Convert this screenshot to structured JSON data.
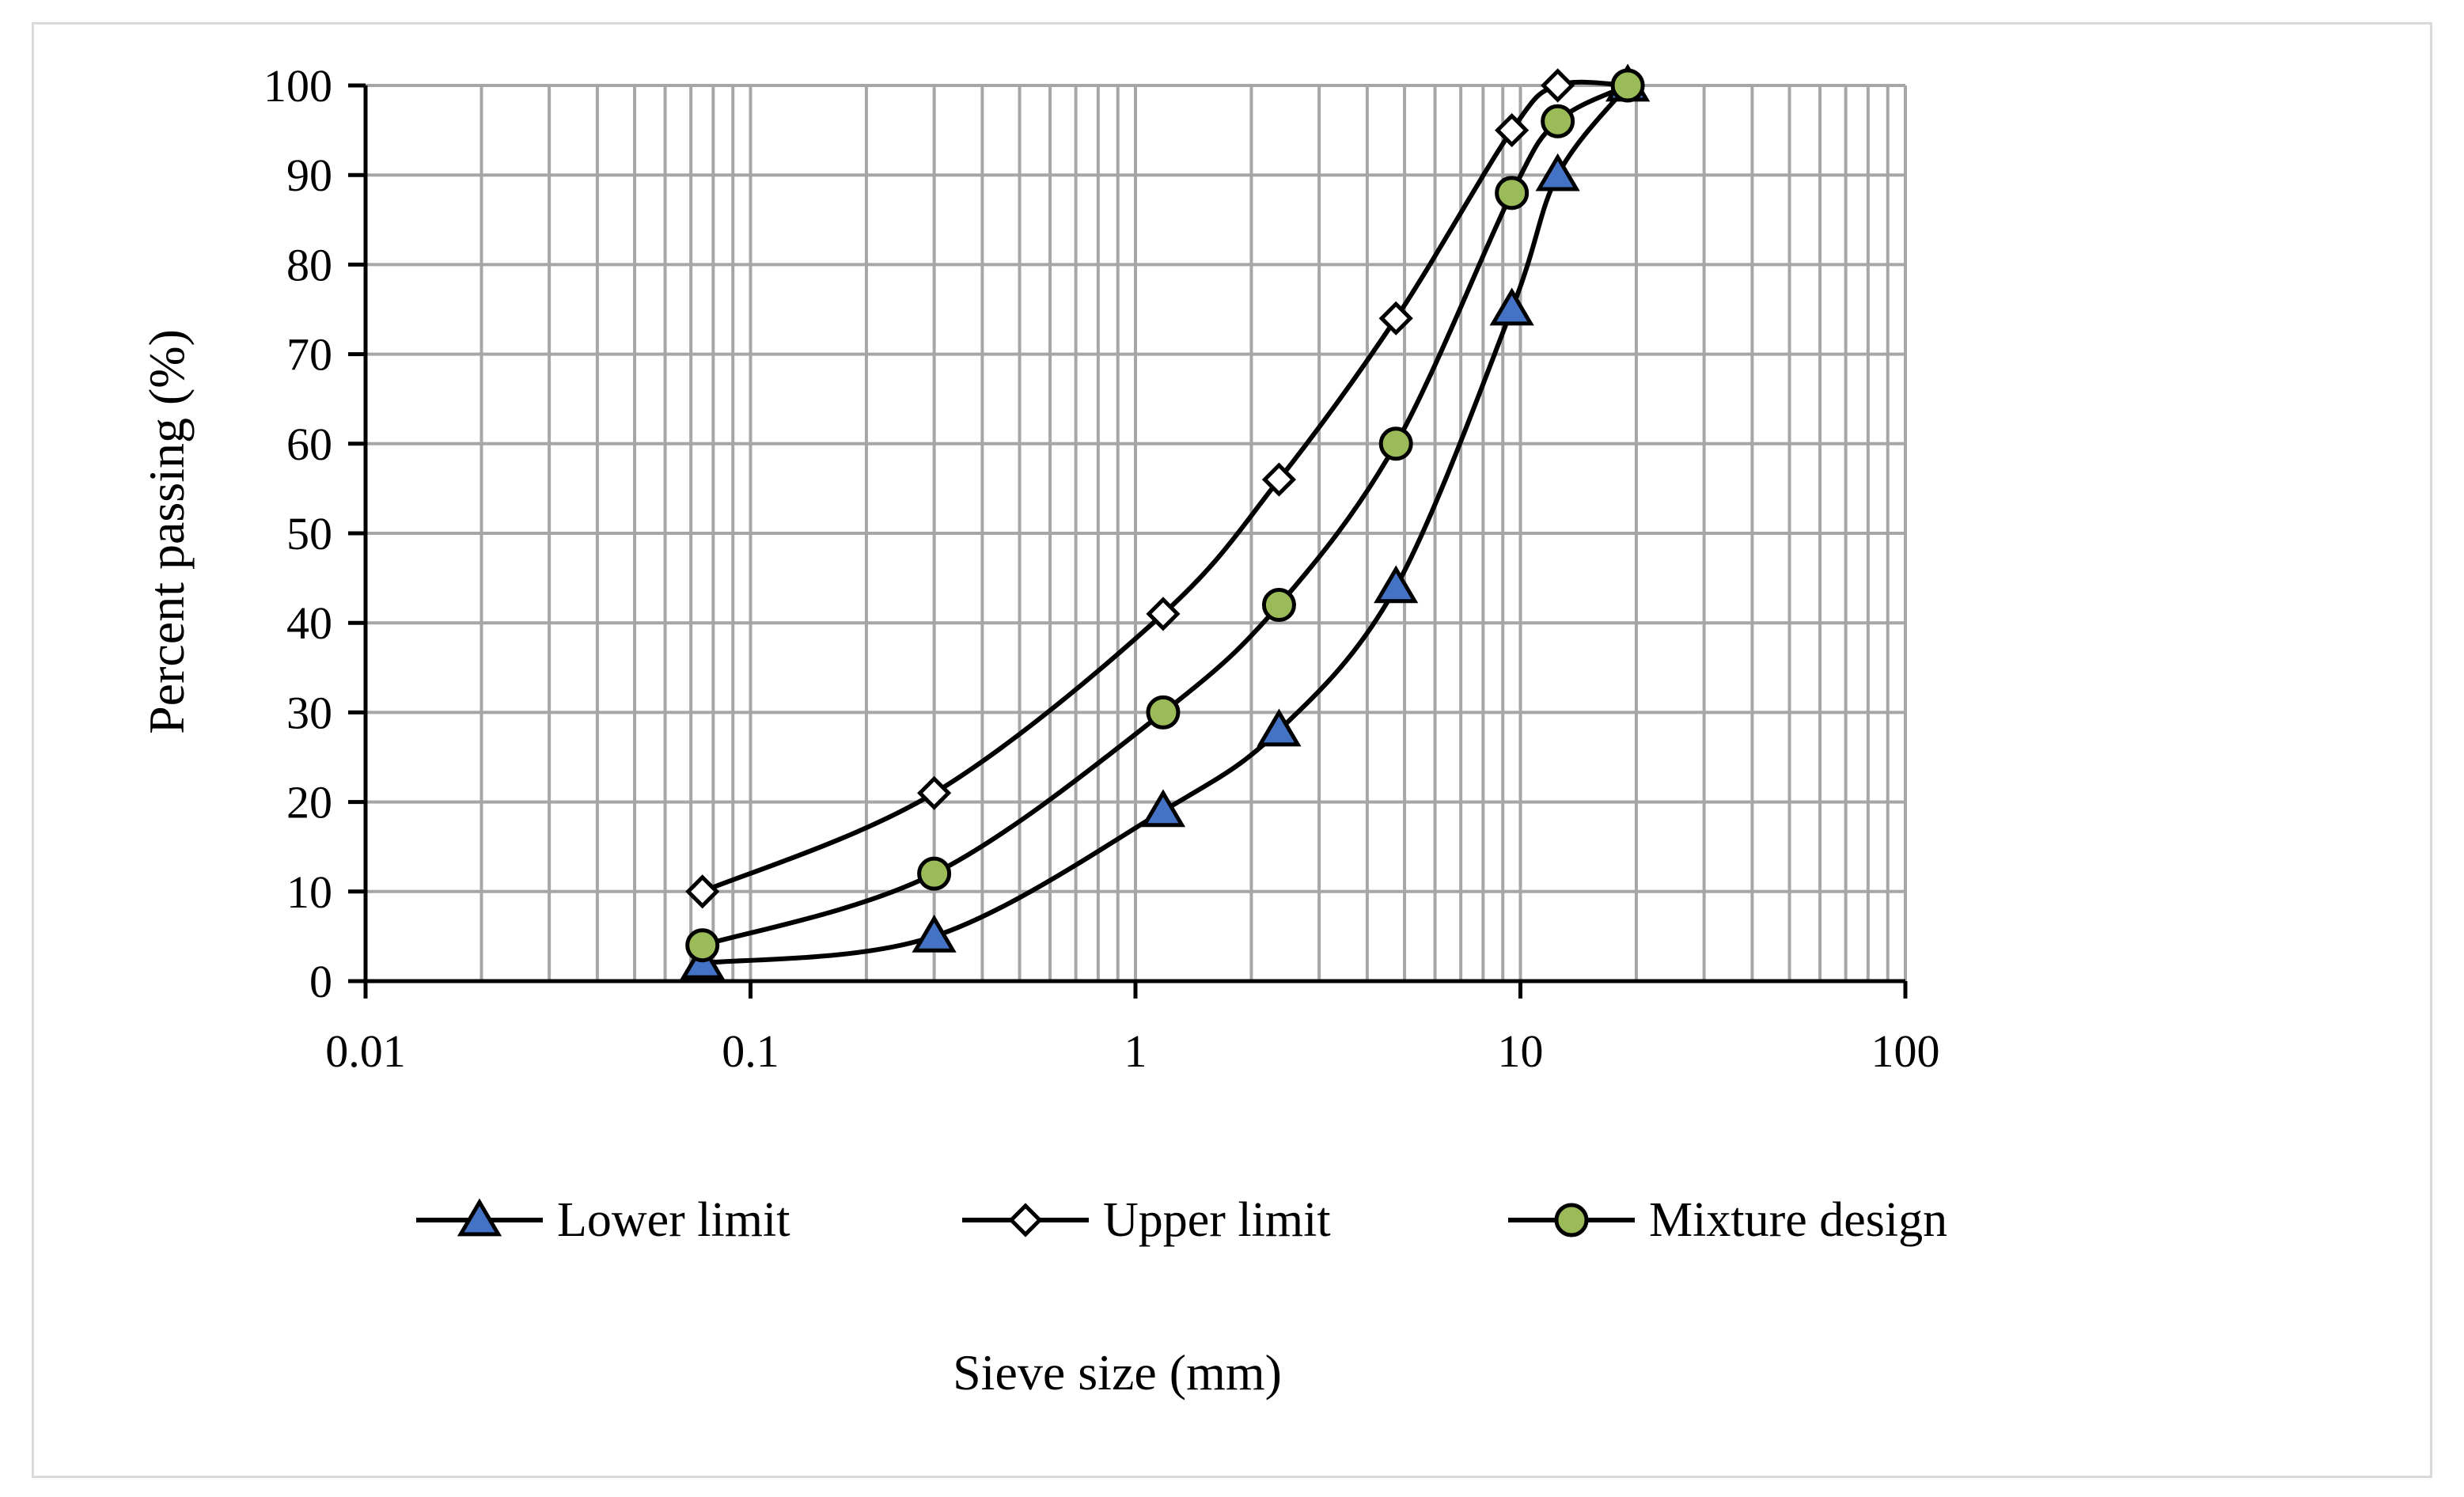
{
  "chart_data": {
    "type": "line",
    "title": "",
    "xlabel": "Sieve size (mm)",
    "ylabel": "Percent passing (%)",
    "x_scale": "log",
    "xlim": [
      0.01,
      100
    ],
    "ylim": [
      0,
      100
    ],
    "x_ticks": [
      "0.01",
      "0.1",
      "1",
      "10",
      "100"
    ],
    "y_ticks": [
      "0",
      "10",
      "20",
      "30",
      "40",
      "50",
      "60",
      "70",
      "80",
      "90",
      "100"
    ],
    "grid": true,
    "legend_position": "bottom",
    "series": [
      {
        "name": "Lower limit",
        "marker": "triangle",
        "marker_color": "#4472c4",
        "line_color": "#000000",
        "x": [
          0.075,
          0.3,
          1.18,
          2.36,
          4.75,
          9.5,
          12.5,
          19
        ],
        "y": [
          2,
          5,
          19,
          28,
          44,
          75,
          90,
          100
        ]
      },
      {
        "name": "Upper limit",
        "marker": "diamond",
        "marker_color": "#ffffff",
        "line_color": "#000000",
        "x": [
          0.075,
          0.3,
          1.18,
          2.36,
          4.75,
          9.5,
          12.5,
          19
        ],
        "y": [
          10,
          21,
          41,
          56,
          74,
          95,
          100,
          100
        ]
      },
      {
        "name": "Mixture design",
        "marker": "circle",
        "marker_color": "#9bbb59",
        "line_color": "#000000",
        "x": [
          0.075,
          0.3,
          1.18,
          2.36,
          4.75,
          9.5,
          12.5,
          19
        ],
        "y": [
          4,
          12,
          30,
          42,
          60,
          88,
          96,
          100
        ]
      }
    ]
  }
}
